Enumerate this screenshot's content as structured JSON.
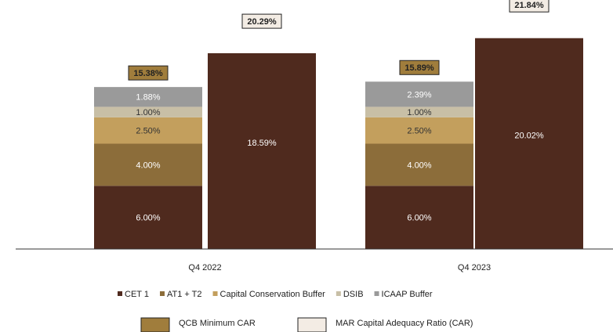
{
  "chart_data": {
    "type": "stacked_bar",
    "categories": [
      "Q4 2022",
      "Q4 2023"
    ],
    "series": [
      {
        "name": "CET 1",
        "color": "#4f2a1e",
        "values": [
          6.0,
          6.0
        ],
        "value_labels": [
          "6.00%",
          "6.00%"
        ]
      },
      {
        "name": "AT1 + T2",
        "color": "#8c6d3a",
        "values": [
          4.0,
          4.0
        ],
        "value_labels": [
          "4.00%",
          "4.00%"
        ]
      },
      {
        "name": "Capital Conservation Buffer",
        "color": "#c39f5d",
        "values": [
          2.5,
          2.5
        ],
        "value_labels": [
          "2.50%",
          "2.50%"
        ]
      },
      {
        "name": "DSIB",
        "color": "#c8bfa6",
        "values": [
          1.0,
          1.0
        ],
        "value_labels": [
          "1.00%",
          "1.00%"
        ]
      },
      {
        "name": "ICAAP Buffer",
        "color": "#9a9a9a",
        "values": [
          1.88,
          2.39
        ],
        "value_labels": [
          "1.88%",
          "2.39%"
        ]
      }
    ],
    "car_bar": {
      "color": "#4f2a1e",
      "values": [
        18.59,
        20.02
      ],
      "value_labels": [
        "18.59%",
        "20.02%"
      ]
    },
    "totals": [
      {
        "name": "QCB Minimum CAR",
        "color": "#a07d3c",
        "values": [
          15.38,
          15.89
        ],
        "value_labels": [
          "15.38%",
          "15.89%"
        ]
      },
      {
        "name": "MAR Capital Adequacy Ratio (CAR)",
        "color": "#f3ece4",
        "values": [
          20.29,
          21.84
        ],
        "value_labels": [
          "20.29%",
          "21.84%"
        ]
      }
    ]
  }
}
